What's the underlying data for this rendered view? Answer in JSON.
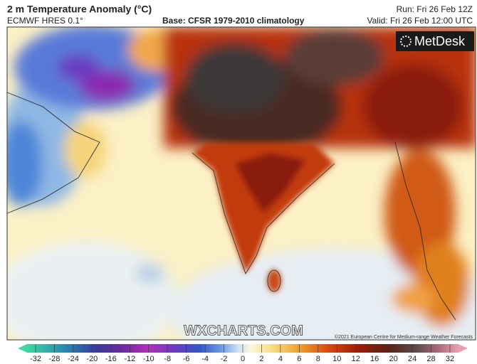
{
  "header": {
    "title": "2 m Temperature Anomaly (°C)",
    "model": "ECMWF HRES 0.1°",
    "base": "Base: CFSR 1979-2010 climatology",
    "run": "Run: Fri 26 Feb 12Z",
    "valid": "Valid: Fri 26 Feb 12:00 UTC"
  },
  "logo": "MetDesk",
  "watermark": "WXCHARTS.COM",
  "copyright": "©2021 European Centre for Medium-range Weather Forecasts",
  "colorbar": {
    "ticks": [
      -32,
      -28,
      -24,
      -20,
      -16,
      -12,
      -10,
      -8,
      -6,
      -4,
      -2,
      0,
      2,
      4,
      6,
      8,
      10,
      12,
      16,
      20,
      24,
      28,
      32
    ]
  }
}
